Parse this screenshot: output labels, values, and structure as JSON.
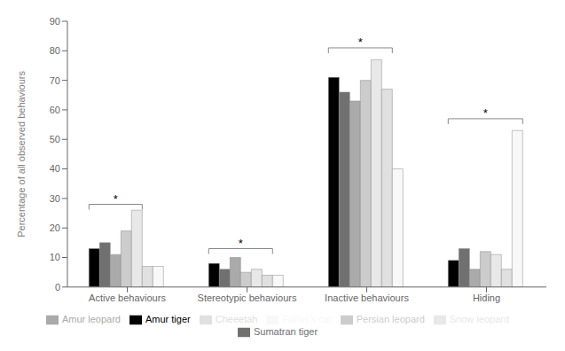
{
  "chart_data": {
    "type": "bar",
    "categories": [
      "Active behaviours",
      "Stereotypic behaviours",
      "Inactive behaviours",
      "Hiding"
    ],
    "series": [
      {
        "name": "Amur tiger",
        "color": "#000000",
        "values": [
          13,
          8,
          71,
          9
        ]
      },
      {
        "name": "Sumatran tiger",
        "color": "#707070",
        "values": [
          15,
          6,
          66,
          13
        ]
      },
      {
        "name": "Amur leopard",
        "color": "#aaaaaa",
        "values": [
          11,
          10,
          63,
          6
        ]
      },
      {
        "name": "Persian leopard",
        "color": "#cccccc",
        "values": [
          19,
          5,
          70,
          12
        ]
      },
      {
        "name": "Snow leopard",
        "color": "#e8e8e8",
        "values": [
          26,
          6,
          77,
          11
        ]
      },
      {
        "name": "Cheeetah",
        "color": "#e0e0e0",
        "values": [
          7,
          4,
          67,
          6
        ]
      },
      {
        "name": "Pallas's cat",
        "color": "#f8f8f8",
        "values": [
          7,
          4,
          40,
          53
        ]
      }
    ],
    "ylabel": "Percentage of all observed behaviours",
    "ylim": [
      0,
      90
    ],
    "yticks": [
      0,
      10,
      20,
      30,
      40,
      50,
      60,
      70,
      80,
      90
    ],
    "grid": false,
    "legend": "bottom",
    "annotations": [
      {
        "category": "Active behaviours",
        "from": "Amur tiger",
        "to": "Snow leopard",
        "y": 28,
        "label": "*"
      },
      {
        "category": "Stereotypic behaviours",
        "from": "Amur tiger",
        "to": "Cheeetah",
        "y": 13,
        "label": "*"
      },
      {
        "category": "Inactive behaviours",
        "from": "Amur tiger",
        "to": "Cheeetah",
        "y": 81,
        "label": "*"
      },
      {
        "category": "Hiding",
        "from": "Amur tiger",
        "to": "Pallas's cat",
        "y": 57,
        "label": "*"
      }
    ]
  }
}
